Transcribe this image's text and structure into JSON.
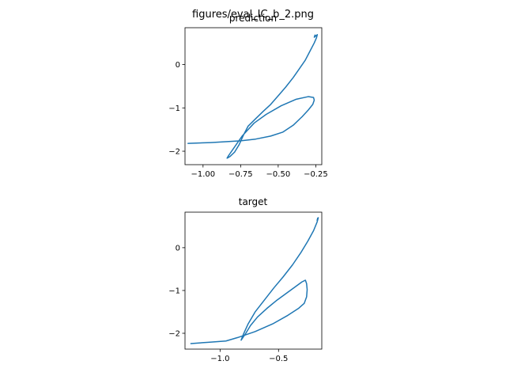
{
  "figure": {
    "suptitle": "figures/eval_IC_b_2.png",
    "line_color": "#1f77b4"
  },
  "chart_data": [
    {
      "type": "line",
      "title": "prediction",
      "xlabel": "",
      "ylabel": "",
      "xlim": [
        -1.12,
        -0.21
      ],
      "ylim": [
        -2.31,
        0.85
      ],
      "xticks": [
        -1.0,
        -0.75,
        -0.5,
        -0.25
      ],
      "xtick_labels": [
        "−1.00",
        "−0.75",
        "−0.50",
        "−0.25"
      ],
      "yticks": [
        -2,
        -1,
        0
      ],
      "ytick_labels": [
        "−2",
        "−1",
        "0"
      ],
      "grid": false,
      "series": [
        {
          "x": [
            -1.1,
            -0.95,
            -0.85,
            -0.75,
            -0.65,
            -0.55,
            -0.47,
            -0.4,
            -0.34,
            -0.3,
            -0.27,
            -0.26,
            -0.265,
            -0.3,
            -0.38,
            -0.48,
            -0.58,
            -0.66,
            -0.7,
            -0.74,
            -0.77,
            -0.8,
            -0.83,
            -0.84,
            -0.82,
            -0.79,
            -0.76,
            -0.73,
            -0.7,
            -0.65,
            -0.6,
            -0.55,
            -0.5,
            -0.45,
            -0.4,
            -0.36,
            -0.32,
            -0.29,
            -0.26,
            -0.245,
            -0.24,
            -0.26,
            -0.255
          ],
          "y": [
            -1.82,
            -1.8,
            -1.78,
            -1.76,
            -1.72,
            -1.65,
            -1.56,
            -1.4,
            -1.2,
            -1.05,
            -0.92,
            -0.82,
            -0.76,
            -0.74,
            -0.8,
            -0.95,
            -1.15,
            -1.35,
            -1.5,
            -1.65,
            -1.8,
            -1.95,
            -2.1,
            -2.16,
            -2.12,
            -2.02,
            -1.85,
            -1.62,
            -1.42,
            -1.25,
            -1.08,
            -0.92,
            -0.72,
            -0.52,
            -0.3,
            -0.1,
            0.1,
            0.3,
            0.5,
            0.62,
            0.69,
            0.63,
            0.68
          ]
        }
      ]
    },
    {
      "type": "line",
      "title": "target",
      "xlabel": "",
      "ylabel": "",
      "xlim": [
        -1.3,
        -0.13
      ],
      "ylim": [
        -2.37,
        0.83
      ],
      "xticks": [
        -1.0,
        -0.5
      ],
      "xtick_labels": [
        "−1.0",
        "−0.5"
      ],
      "yticks": [
        -2,
        -1,
        0
      ],
      "ytick_labels": [
        "−2",
        "−1",
        "0"
      ],
      "grid": false,
      "series": [
        {
          "x": [
            -1.25,
            -1.1,
            -0.95,
            -0.85,
            -0.7,
            -0.55,
            -0.42,
            -0.33,
            -0.28,
            -0.26,
            -0.255,
            -0.26,
            -0.27,
            -0.3,
            -0.36,
            -0.44,
            -0.52,
            -0.6,
            -0.68,
            -0.74,
            -0.78,
            -0.82,
            -0.8,
            -0.76,
            -0.7,
            -0.62,
            -0.54,
            -0.46,
            -0.38,
            -0.31,
            -0.25,
            -0.2,
            -0.17,
            -0.16,
            -0.17,
            -0.165
          ],
          "y": [
            -2.24,
            -2.21,
            -2.18,
            -2.1,
            -1.96,
            -1.78,
            -1.58,
            -1.42,
            -1.3,
            -1.15,
            -0.98,
            -0.84,
            -0.76,
            -0.8,
            -0.92,
            -1.08,
            -1.24,
            -1.42,
            -1.62,
            -1.82,
            -2.0,
            -2.16,
            -2.02,
            -1.78,
            -1.5,
            -1.22,
            -0.94,
            -0.68,
            -0.4,
            -0.12,
            0.15,
            0.4,
            0.6,
            0.7,
            0.64,
            0.69
          ]
        }
      ]
    }
  ]
}
